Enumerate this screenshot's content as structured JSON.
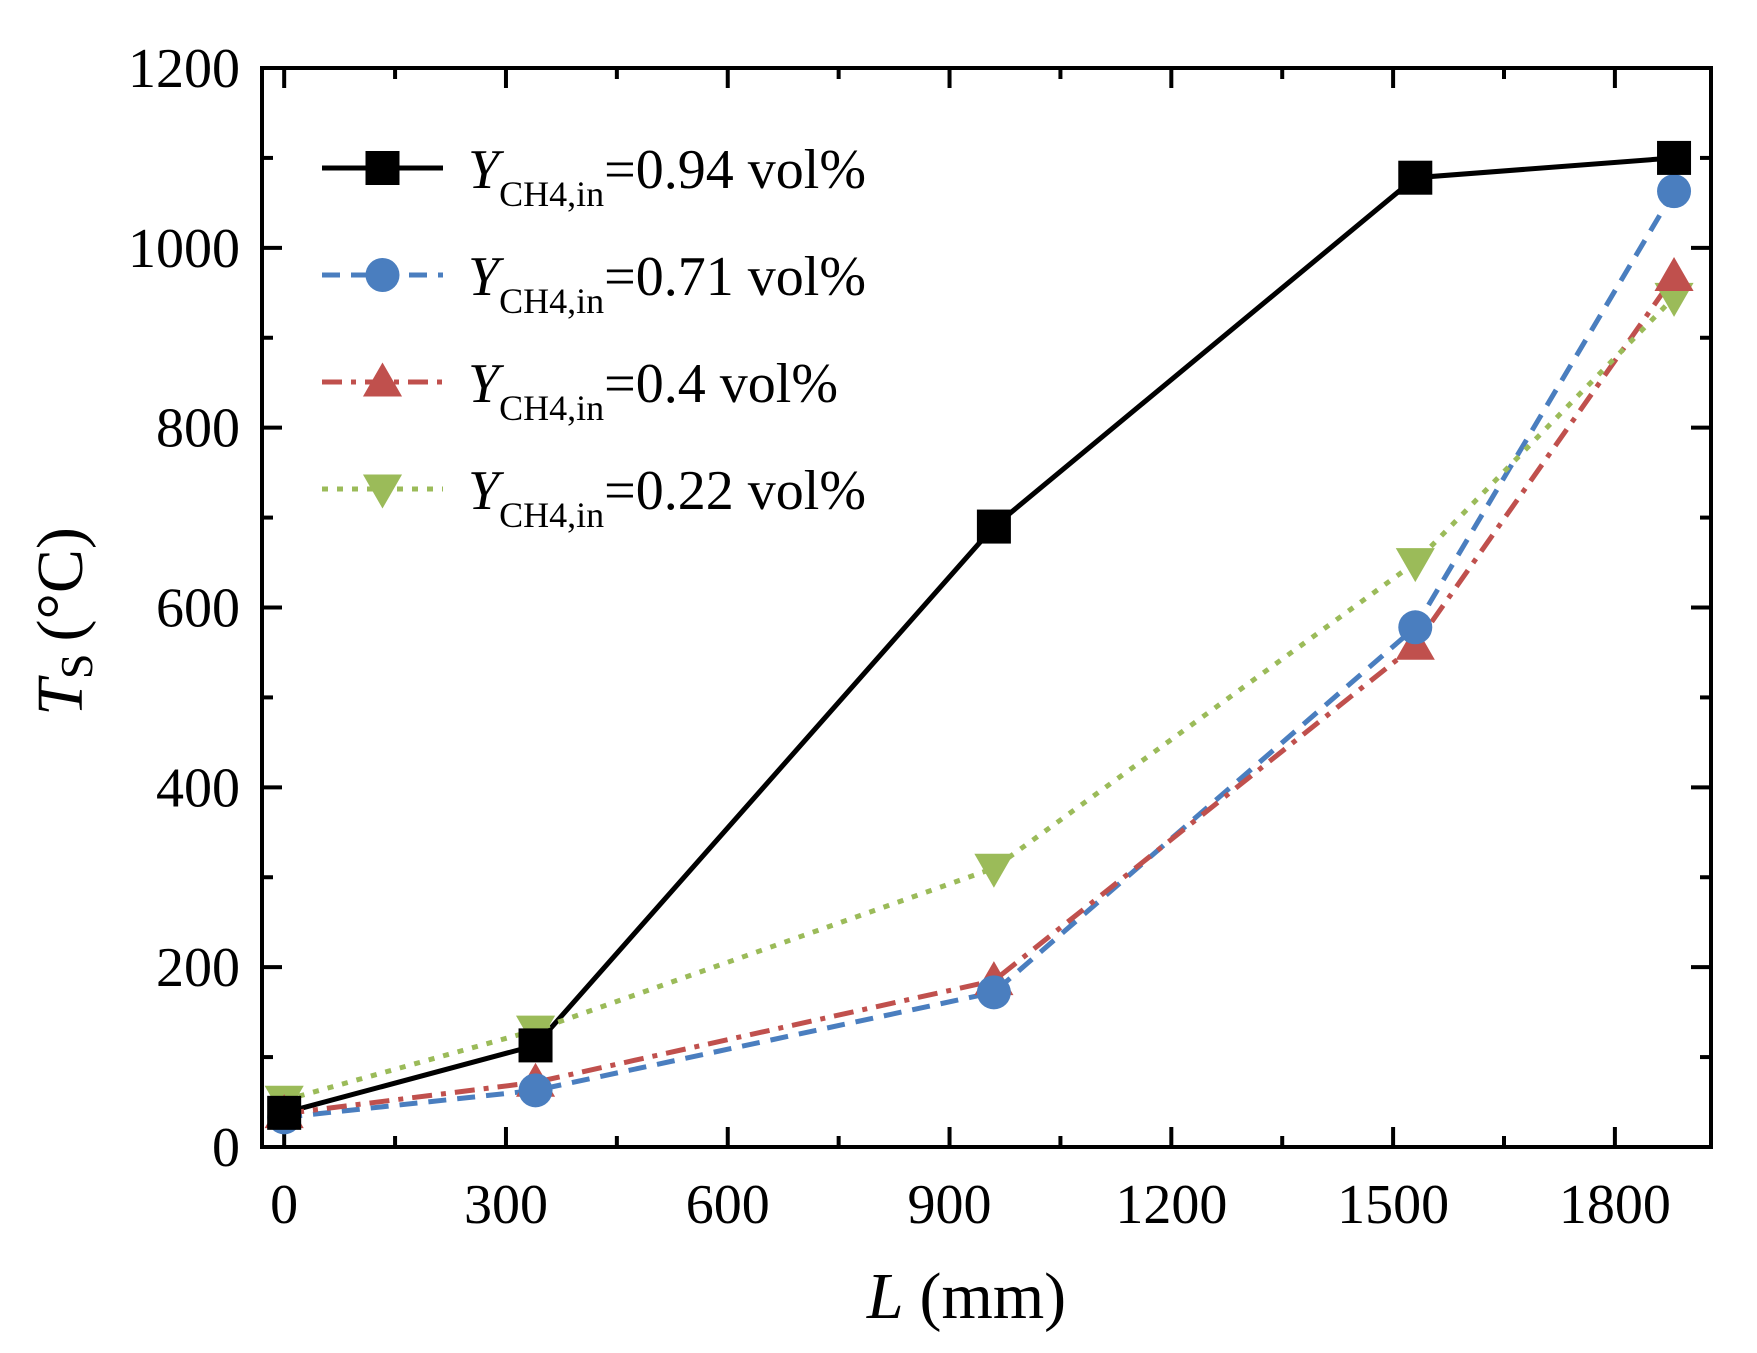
{
  "chart_data": {
    "type": "line",
    "title": "",
    "xlabel": {
      "symbol": "L",
      "unit": "(mm)"
    },
    "ylabel": {
      "symbol": "T",
      "subscript": "S",
      "unit": "(°C)"
    },
    "xlim": [
      -30,
      1930
    ],
    "ylim": [
      0,
      1200
    ],
    "xticks": [
      0,
      300,
      600,
      900,
      1200,
      1500,
      1800
    ],
    "xtick_labels": [
      "0",
      "300",
      "600",
      "900",
      "1200",
      "1500",
      "1800"
    ],
    "yticks": [
      0,
      200,
      400,
      600,
      800,
      1000,
      1200
    ],
    "ytick_labels": [
      "0",
      "200",
      "400",
      "600",
      "800",
      "1000",
      "1200"
    ],
    "legend_position": "top-left",
    "series": [
      {
        "name": "Y_CH4,in=0.94 vol%",
        "label_symbol": "Y",
        "label_sub": "CH4,in",
        "label_rest": "=0.94 vol%",
        "color": "#000000",
        "marker": "square",
        "dash": "solid",
        "x": [
          0,
          340,
          960,
          1530,
          1880
        ],
        "values": [
          38,
          113,
          690,
          1078,
          1100
        ]
      },
      {
        "name": "Y_CH4,in=0.71 vol%",
        "label_symbol": "Y",
        "label_sub": "CH4,in",
        "label_rest": "=0.71 vol%",
        "color": "#4a7ebf",
        "marker": "circle",
        "dash": "dash",
        "x": [
          0,
          340,
          960,
          1530,
          1880
        ],
        "values": [
          33,
          63,
          172,
          578,
          1063
        ]
      },
      {
        "name": "Y_CH4,in=0.4 vol%",
        "label_symbol": "Y",
        "label_sub": "CH4,in",
        "label_rest": "=0.4 vol%",
        "color": "#c0504d",
        "marker": "triangle-up",
        "dash": "dashdot",
        "x": [
          0,
          340,
          960,
          1530,
          1880
        ],
        "values": [
          37,
          72,
          185,
          558,
          968
        ]
      },
      {
        "name": "Y_CH4,in=0.22 vol%",
        "label_symbol": "Y",
        "label_sub": "CH4,in",
        "label_rest": "=0.22 vol%",
        "color": "#9bbb59",
        "marker": "triangle-down",
        "dash": "dot",
        "x": [
          0,
          340,
          960,
          1530,
          1880
        ],
        "values": [
          52,
          130,
          310,
          650,
          945
        ]
      }
    ]
  }
}
